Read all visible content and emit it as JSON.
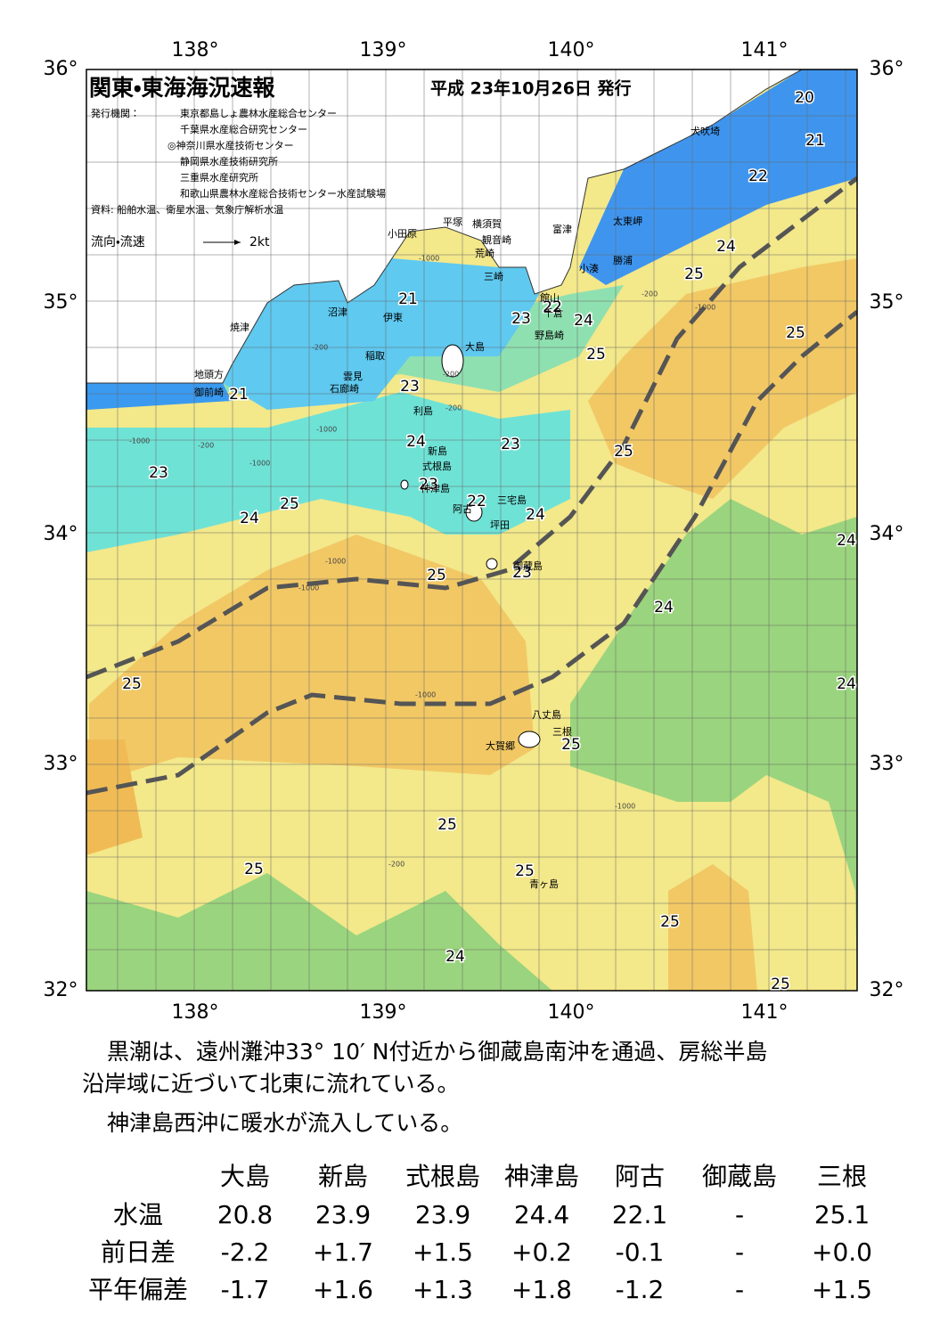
{
  "map": {
    "title": "関東・東海海況速報",
    "issue_date": "平成 23年10月26日 発行",
    "publisher_label": "発行機関：",
    "publishers": [
      "東京都島しょ農林水産総合センター",
      "千葉県水産総合研究センター",
      "◎神奈川県水産技術センター",
      "静岡県水産技術研究所",
      "三重県水産研究所",
      "和歌山県農林水産総合技術センター水産試験場"
    ],
    "source": "資料: 船舶水温、衛星水温、気象庁解析水温",
    "current_legend": "流向・流速",
    "current_unit": "2kt",
    "lon_labels": [
      "138°",
      "139°",
      "140°",
      "141°"
    ],
    "lat_labels": [
      "36°",
      "35°",
      "34°",
      "33°",
      "32°"
    ],
    "places": [
      "犬吠埼",
      "太東岬",
      "勝浦",
      "小湊",
      "富津",
      "館山",
      "千倉",
      "野島崎",
      "横須賀",
      "観音崎",
      "荒崎",
      "三崎",
      "平塚",
      "小田原",
      "沼津",
      "伊東",
      "焼津",
      "地頭方",
      "御前崎",
      "稲取",
      "雲見",
      "石廊崎",
      "大島",
      "利島",
      "新島",
      "式根島",
      "神津島",
      "三宅島",
      "阿古",
      "坪田",
      "御蔵島",
      "八丈島",
      "三根",
      "大賀郷",
      "青ヶ島"
    ],
    "contour_labels": [
      "20",
      "21",
      "22",
      "24",
      "25",
      "25",
      "21",
      "22",
      "23",
      "24",
      "25",
      "21",
      "23",
      "24",
      "23",
      "25",
      "23",
      "23",
      "22",
      "24",
      "25",
      "24",
      "25",
      "23",
      "24",
      "24",
      "25",
      "24",
      "25",
      "25",
      "25",
      "25",
      "25",
      "24",
      "25"
    ],
    "depth_labels": [
      "-1000",
      "-200",
      "-1000",
      "-200",
      "-200",
      "-1000",
      "-200",
      "-1000",
      "-1000",
      "-200",
      "-1000",
      "-1000",
      "-1000",
      "-1000",
      "-200"
    ]
  },
  "text": {
    "paragraphs": [
      [
        "黒潮は、遠州灘沖33° 10′ N付近から御蔵島南沖を通過、房総半島",
        "沿岸域に近づいて北東に流れている。"
      ],
      [
        "神津島西沖に暖水が流入している。"
      ]
    ]
  },
  "table": {
    "header": [
      "大島",
      "新島",
      "式根島",
      "神津島",
      "阿古",
      "御蔵島",
      "三根"
    ],
    "rows": [
      [
        "水温",
        "20.8",
        "23.9",
        "23.9",
        "24.4",
        "22.1",
        "-",
        "25.1"
      ],
      [
        "前日差",
        "-2.2",
        "+1.7",
        "+1.5",
        "+0.2",
        "-0.1",
        "-",
        "+0.0"
      ],
      [
        "平年偏差",
        "-1.7",
        "+1.6",
        "+1.3",
        "+1.8",
        "-1.2",
        "-",
        "+1.5"
      ]
    ]
  }
}
